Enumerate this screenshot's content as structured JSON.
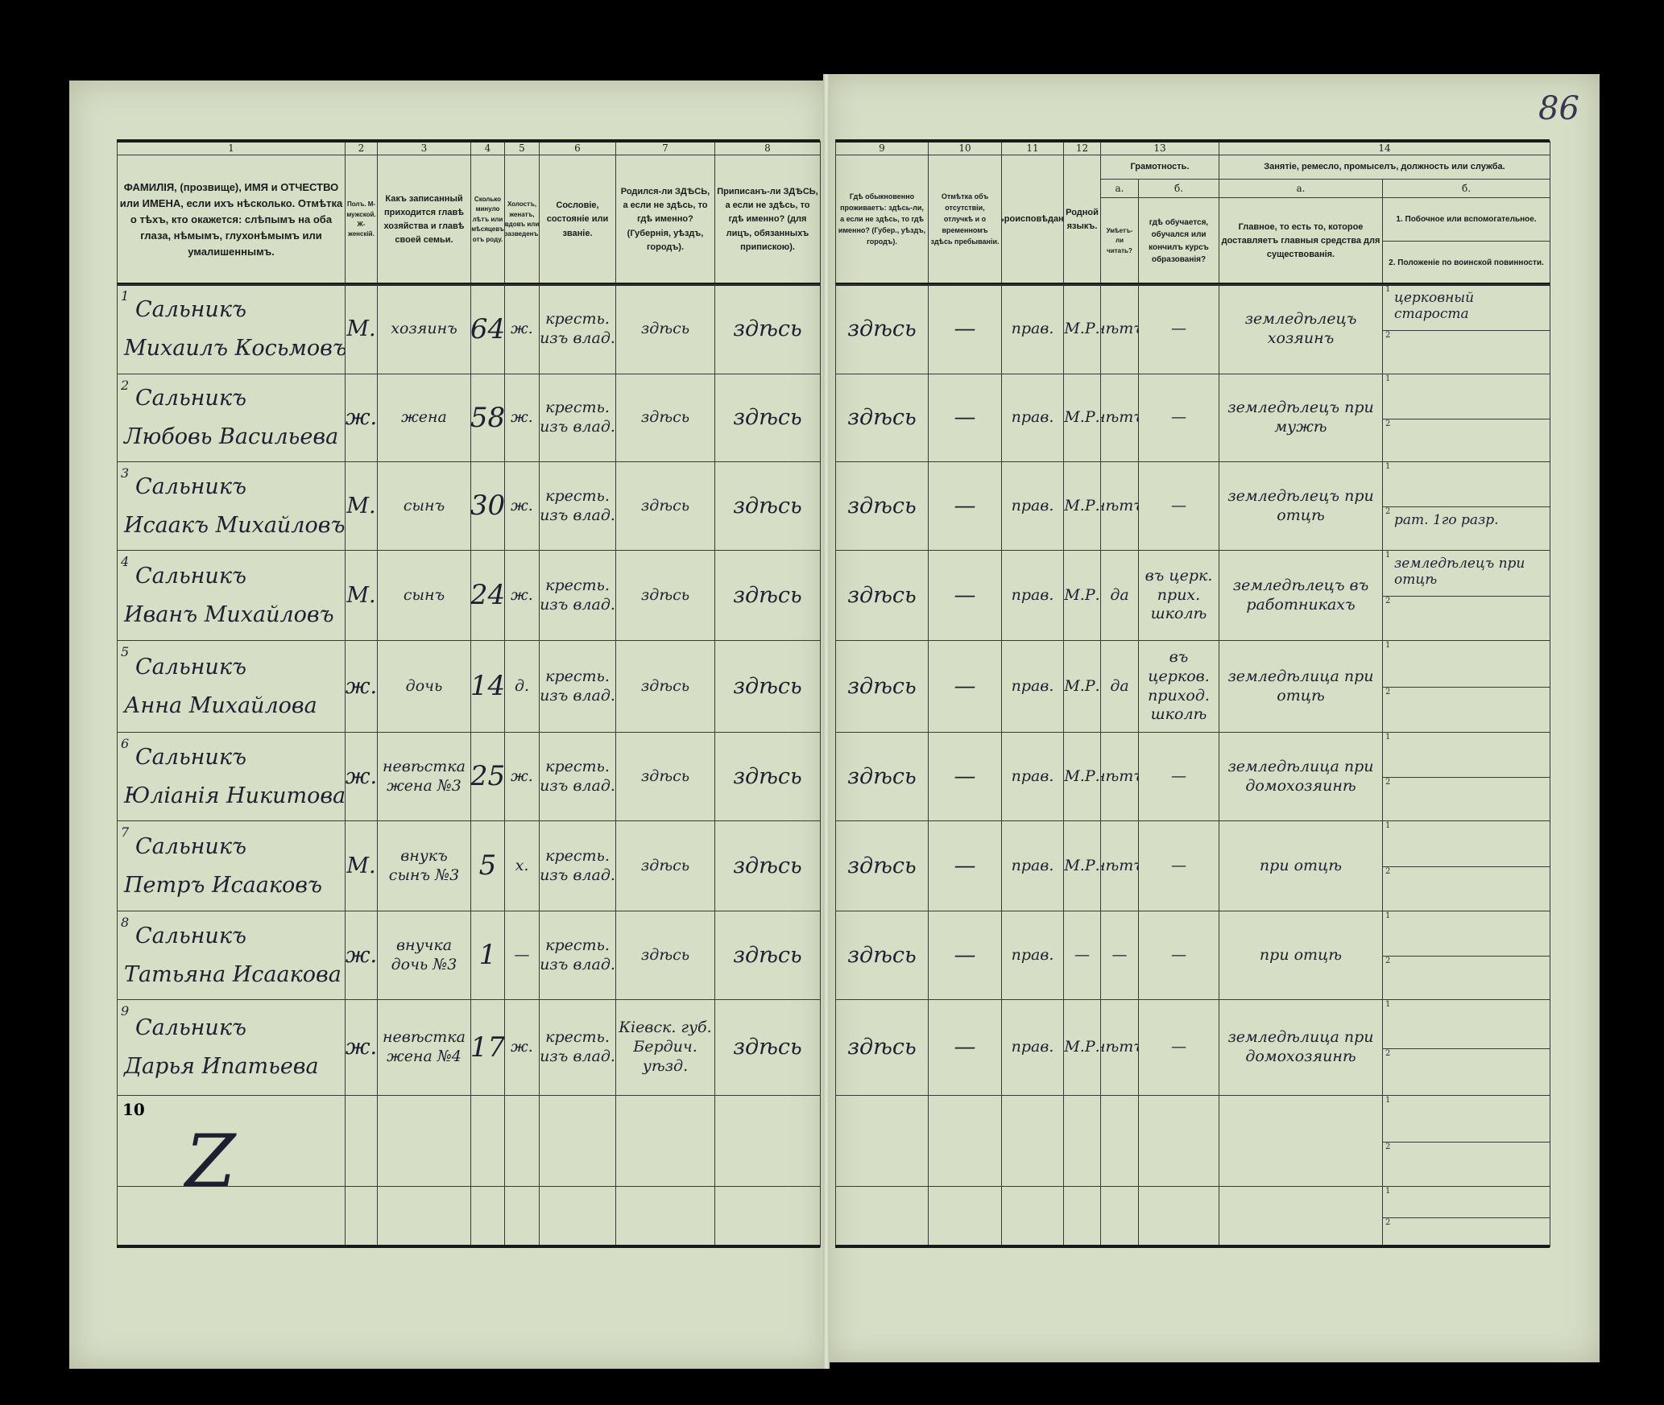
{
  "page_number": "86",
  "left_header": {
    "numbers": [
      "1",
      "2",
      "3",
      "4",
      "5",
      "6",
      "7",
      "8"
    ],
    "titles": [
      "ФАМИЛІЯ, (прозвище), ИМЯ и ОТЧЕСТВО или ИМЕНА, если ихъ нѣсколько. Отмѣтка о тѣхъ, кто окажется: слѣпымъ на оба глаза, нѣмымъ, глухонѣмымъ или умалишеннымъ.",
      "Полъ. М-мужской. Ж-женскій.",
      "Какъ записанный приходится главѣ хозяйства и главѣ своей семьи.",
      "Сколько минуло лѣтъ или мѣсяцевъ отъ роду.",
      "Холостъ, женатъ, вдовъ или разведенъ.",
      "Сословіе, состояніе или званіе.",
      "Родился-ли ЗДѢСЬ, а если не здѣсь, то гдѣ именно? (Губернія, уѣздъ, городъ).",
      "Приписанъ-ли ЗДѢСЬ, а если не здѣсь, то гдѣ именно? (для лицъ, обязанныхъ припискою)."
    ]
  },
  "right_header": {
    "numbers": [
      "9",
      "10",
      "11",
      "12",
      "13",
      "14"
    ],
    "col9": "Гдѣ обыкновенно проживаетъ: здѣсь-ли, а если не здѣсь, то гдѣ именно? (Губер., уѣздъ, городъ).",
    "col10": "Отмѣтка объ отсутствіи, отлучкѣ и о временномъ здѣсь пребываніи.",
    "col11": "Вѣроисповѣданіе.",
    "col12": "Родной языкъ.",
    "col13_group": "Грамотность.",
    "col13a_letter": "а.",
    "col13b_letter": "б.",
    "col13a": "Умѣетъ-ли читать?",
    "col13b": "гдѣ обучается, обучался или кончилъ курсъ образованія?",
    "col14_group": "Занятіе, ремесло, промыселъ, должность или служба.",
    "col14a_letter": "а.",
    "col14b_letter": "б.",
    "col14a": "Главное, то есть то, которое доставляетъ главныя средства для существованія.",
    "col14b_1": "1. Побочное или вспомогательное.",
    "col14b_2": "2. Положеніе по воинской повинности."
  },
  "rows": [
    {
      "n": "1",
      "surname": "Сальникъ",
      "given": "Михаилъ Косьмовъ",
      "sex": "М.",
      "relation": "хозяинъ",
      "age": "64",
      "marital": "ж.",
      "estate": "кресть. изъ влад.",
      "born": "здѣсь",
      "registered": "здѣсь",
      "residence": "здѣсь",
      "absence": "—",
      "religion": "прав.",
      "language": "М.Р.",
      "literate": "нѣтъ",
      "school": "—",
      "occupation": "земледѣлецъ хозяинъ",
      "secondary": "церковный староста",
      "military": ""
    },
    {
      "n": "2",
      "surname": "Сальникъ",
      "given": "Любовь Васильева",
      "sex": "ж.",
      "relation": "жена",
      "age": "58",
      "marital": "ж.",
      "estate": "кресть. изъ влад.",
      "born": "здѣсь",
      "registered": "здѣсь",
      "residence": "здѣсь",
      "absence": "—",
      "religion": "прав.",
      "language": "М.Р.",
      "literate": "нѣтъ",
      "school": "—",
      "occupation": "земледѣлецъ при мужѣ",
      "secondary": "",
      "military": ""
    },
    {
      "n": "3",
      "surname": "Сальникъ",
      "given": "Исаакъ Михайловъ",
      "sex": "М.",
      "relation": "сынъ",
      "age": "30",
      "marital": "ж.",
      "estate": "кресть. изъ влад.",
      "born": "здѣсь",
      "registered": "здѣсь",
      "residence": "здѣсь",
      "absence": "—",
      "religion": "прав.",
      "language": "М.Р.",
      "literate": "нѣтъ",
      "school": "—",
      "occupation": "земледѣлецъ при отцѣ",
      "secondary": "",
      "military": "рат. 1го разр."
    },
    {
      "n": "4",
      "surname": "Сальникъ",
      "given": "Иванъ Михайловъ",
      "sex": "М.",
      "relation": "сынъ",
      "age": "24",
      "marital": "ж.",
      "estate": "кресть. изъ влад.",
      "born": "здѣсь",
      "registered": "здѣсь",
      "residence": "здѣсь",
      "absence": "—",
      "religion": "прав.",
      "language": "М.Р.",
      "literate": "да",
      "school": "въ церк. прих. школѣ",
      "occupation": "земледѣлецъ въ работникахъ",
      "secondary": "земледѣлецъ при отцѣ",
      "military": ""
    },
    {
      "n": "5",
      "surname": "Сальникъ",
      "given": "Анна Михайлова",
      "sex": "ж.",
      "relation": "дочь",
      "age": "14",
      "marital": "д.",
      "estate": "кресть. изъ влад.",
      "born": "здѣсь",
      "registered": "здѣсь",
      "residence": "здѣсь",
      "absence": "—",
      "religion": "прав.",
      "language": "М.Р.",
      "literate": "да",
      "school": "въ церков. приход. школѣ",
      "occupation": "земледѣлица при отцѣ",
      "secondary": "",
      "military": ""
    },
    {
      "n": "6",
      "surname": "Сальникъ",
      "given": "Юліанія Никитова",
      "sex": "ж.",
      "relation": "невѣстка жена №3",
      "age": "25",
      "marital": "ж.",
      "estate": "кресть. изъ влад.",
      "born": "здѣсь",
      "registered": "здѣсь",
      "residence": "здѣсь",
      "absence": "—",
      "religion": "прав.",
      "language": "М.Р.",
      "literate": "нѣтъ",
      "school": "—",
      "occupation": "земледѣлица при домохозяинѣ",
      "secondary": "",
      "military": ""
    },
    {
      "n": "7",
      "surname": "Сальникъ",
      "given": "Петръ Исааковъ",
      "sex": "М.",
      "relation": "внукъ сынъ №3",
      "age": "5",
      "marital": "х.",
      "estate": "кресть. изъ влад.",
      "born": "здѣсь",
      "registered": "здѣсь",
      "residence": "здѣсь",
      "absence": "—",
      "religion": "прав.",
      "language": "М.Р.",
      "literate": "нѣтъ",
      "school": "—",
      "occupation": "при отцѣ",
      "secondary": "",
      "military": ""
    },
    {
      "n": "8",
      "surname": "Сальникъ",
      "given": "Татьяна Исаакова",
      "sex": "ж.",
      "relation": "внучка дочь №3",
      "age": "1",
      "marital": "—",
      "estate": "кресть. изъ влад.",
      "born": "здѣсь",
      "registered": "здѣсь",
      "residence": "здѣсь",
      "absence": "—",
      "religion": "прав.",
      "language": "—",
      "literate": "—",
      "school": "—",
      "occupation": "при отцѣ",
      "secondary": "",
      "military": ""
    },
    {
      "n": "9",
      "surname": "Сальникъ",
      "given": "Дарья Ипатьева",
      "sex": "ж.",
      "relation": "невѣстка жена №4",
      "age": "17",
      "marital": "ж.",
      "estate": "кресть. изъ влад.",
      "born": "Кіевск. губ. Бердич. уѣзд.",
      "registered": "здѣсь",
      "residence": "здѣсь",
      "absence": "—",
      "religion": "прав.",
      "language": "М.Р.",
      "literate": "нѣтъ",
      "school": "—",
      "occupation": "земледѣлица при домохозяинѣ",
      "secondary": "",
      "military": ""
    }
  ],
  "row10": {
    "n": "10",
    "mark": "Z"
  },
  "subrow_labels": [
    "1",
    "2"
  ]
}
